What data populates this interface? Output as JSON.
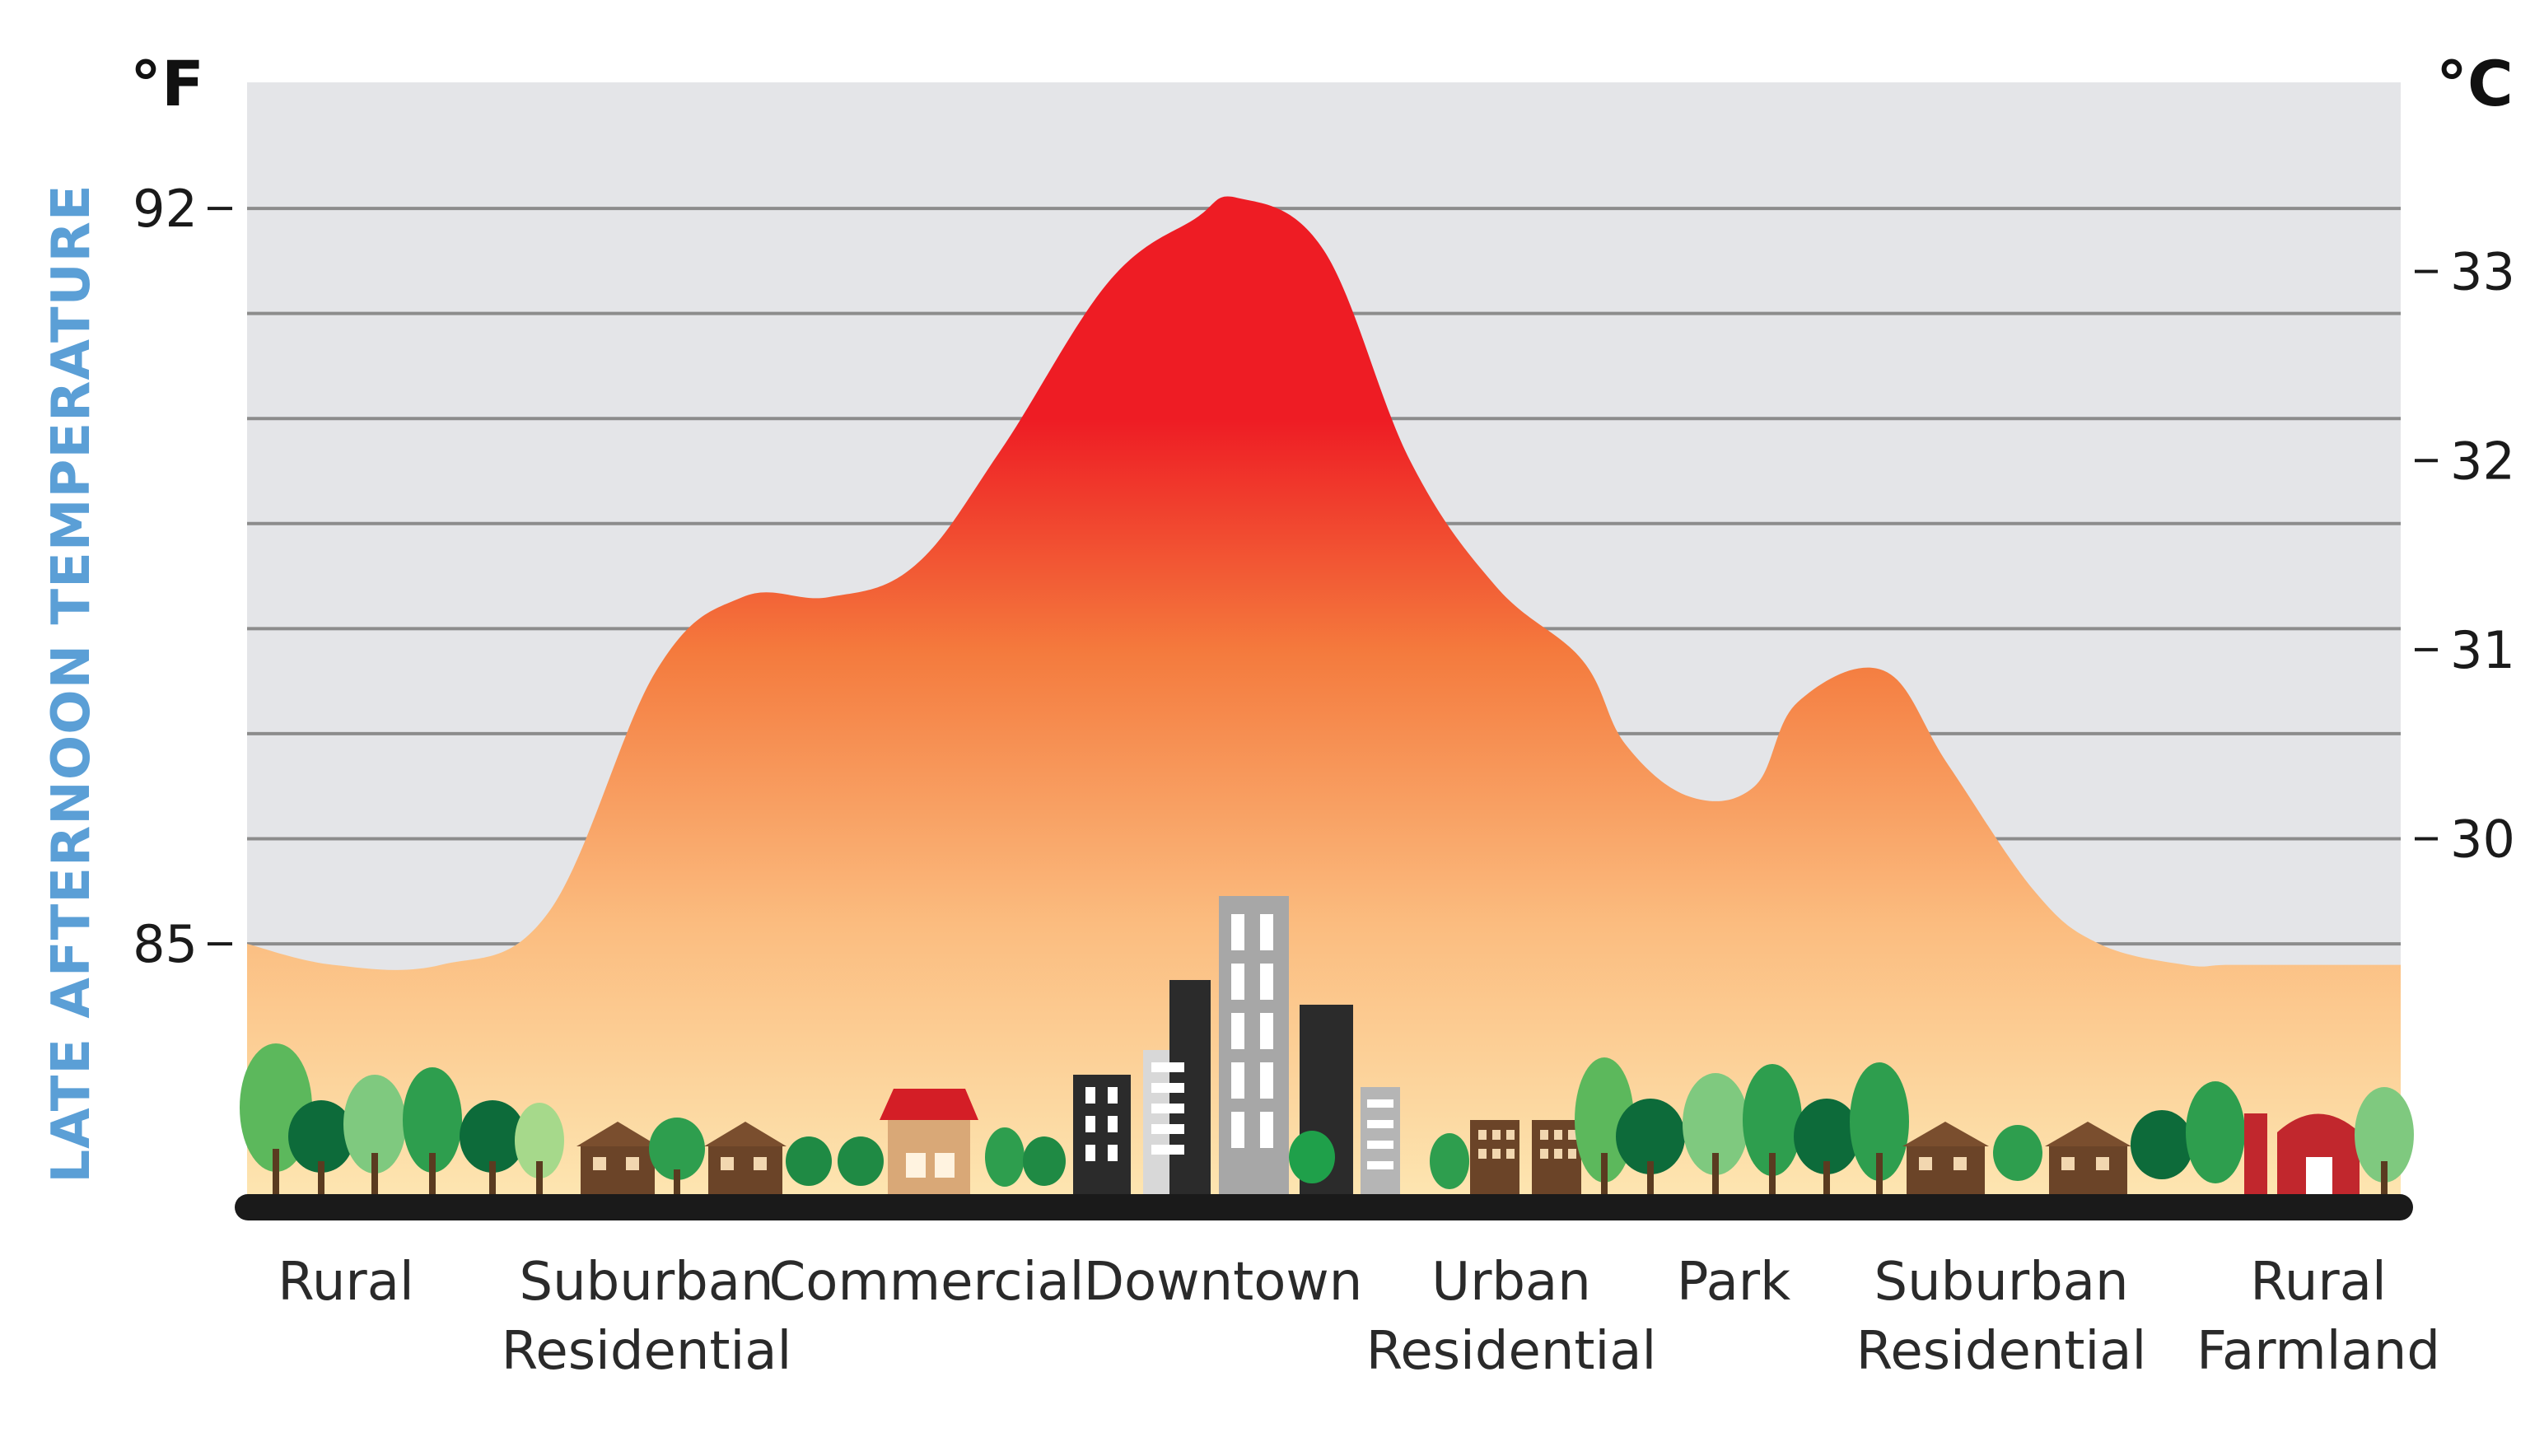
{
  "chart_data": {
    "type": "area",
    "ylabel": "LATE AFTERNOON TEMPERATURE",
    "left_unit": "°F",
    "right_unit": "°C",
    "left_ticks": [
      85,
      92
    ],
    "right_ticks": [
      30,
      31,
      32,
      33
    ],
    "ylim": [
      82.5,
      93.2
    ],
    "grid": true,
    "categories": [
      "Rural",
      "Suburban Residential",
      "Commercial",
      "Downtown",
      "Urban Residential",
      "Park",
      "Suburban Residential",
      "Rural Farmland"
    ],
    "category_lines": [
      [
        "Rural"
      ],
      [
        "Suburban",
        "Residential"
      ],
      [
        "Commercial"
      ],
      [
        "Downtown"
      ],
      [
        "Urban",
        "Residential"
      ],
      [
        "Park"
      ],
      [
        "Suburban",
        "Residential"
      ],
      [
        "Rural",
        "Farmland"
      ]
    ],
    "x": [
      0.0,
      0.04,
      0.09,
      0.14,
      0.19,
      0.23,
      0.27,
      0.31,
      0.35,
      0.4,
      0.44,
      0.46,
      0.5,
      0.54,
      0.58,
      0.62,
      0.64,
      0.67,
      0.7,
      0.72,
      0.76,
      0.79,
      0.83,
      0.86,
      0.9,
      0.92,
      0.96,
      1.0
    ],
    "values": [
      85.0,
      84.8,
      84.8,
      85.3,
      87.6,
      88.3,
      88.3,
      88.6,
      89.7,
      91.3,
      91.9,
      92.1,
      91.6,
      89.6,
      88.4,
      87.7,
      86.9,
      86.4,
      86.5,
      87.3,
      87.6,
      86.7,
      85.5,
      85.0,
      84.8,
      84.8,
      84.8,
      84.8
    ],
    "colors": {
      "grid_fill": "#e4e5e8",
      "grid_line": "#8c8c8c",
      "hot": "#ee1c24",
      "warm": "#f47a3d",
      "mild": "#fbbc7f",
      "cool": "#fde7b3",
      "ground": "#1a1a1a",
      "axis_title": "#5b9fd6"
    }
  }
}
